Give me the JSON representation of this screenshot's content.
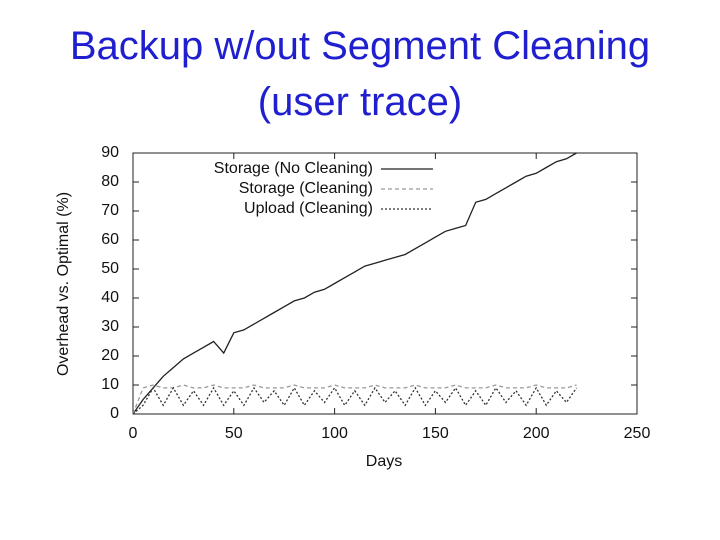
{
  "chart_data": {
    "type": "line",
    "title": "Backup w/out Segment Cleaning (user trace)",
    "xlabel": "Days",
    "ylabel": "Overhead vs. Optimal (%)",
    "x": [
      0,
      5,
      10,
      15,
      20,
      25,
      30,
      35,
      40,
      45,
      50,
      55,
      60,
      65,
      70,
      75,
      80,
      85,
      90,
      95,
      100,
      105,
      110,
      115,
      120,
      125,
      130,
      135,
      140,
      145,
      150,
      155,
      160,
      165,
      170,
      175,
      180,
      185,
      190,
      195,
      200,
      205,
      210,
      215,
      220
    ],
    "series": [
      {
        "name": "Storage (No Cleaning)",
        "color": "#222222",
        "style": "solid",
        "values": [
          0,
          5,
          9,
          13,
          16,
          19,
          21,
          23,
          25,
          21,
          28,
          29,
          31,
          33,
          35,
          37,
          39,
          40,
          42,
          43,
          45,
          47,
          49,
          51,
          52,
          53,
          54,
          55,
          57,
          59,
          61,
          63,
          64,
          65,
          73,
          74,
          76,
          78,
          80,
          82,
          83,
          85,
          87,
          88,
          90
        ]
      },
      {
        "name": "Storage (Cleaning)",
        "color": "#999999",
        "style": "dashed",
        "values": [
          0,
          9,
          10,
          9,
          9,
          10,
          9,
          9,
          10,
          9,
          9,
          9,
          10,
          9,
          9,
          9,
          10,
          9,
          9,
          9,
          10,
          9,
          9,
          9,
          10,
          9,
          9,
          9,
          10,
          9,
          9,
          9,
          10,
          9,
          9,
          9,
          10,
          9,
          9,
          9,
          10,
          9,
          9,
          9,
          10
        ]
      },
      {
        "name": "Upload (Cleaning)",
        "color": "#333333",
        "style": "dotted",
        "values": [
          0,
          3,
          9,
          3,
          9,
          3,
          8,
          3,
          9,
          3,
          8,
          3,
          9,
          4,
          8,
          3,
          9,
          3,
          8,
          4,
          9,
          3,
          8,
          3,
          9,
          4,
          8,
          3,
          9,
          3,
          8,
          4,
          9,
          3,
          8,
          3,
          9,
          4,
          8,
          3,
          9,
          3,
          8,
          4,
          9
        ]
      }
    ],
    "xlim": [
      0,
      250
    ],
    "xticks": [
      0,
      50,
      100,
      150,
      200,
      250
    ],
    "ylim": [
      0,
      90
    ],
    "yticks": [
      0,
      10,
      20,
      30,
      40,
      50,
      60,
      70,
      80,
      90
    ],
    "legend": "upper-left"
  }
}
